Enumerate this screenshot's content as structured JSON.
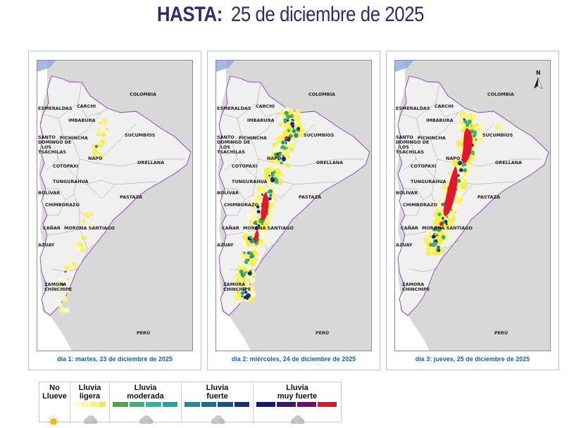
{
  "header": {
    "strong": "HASTA:",
    "date": "25 de diciembre de 2025"
  },
  "labels": {
    "colombia": "COLOMBIA",
    "peru": "PERÚ",
    "esmeraldas": "ESMERALDAS",
    "carchi": "CARCHI",
    "imbabura": "IMBABURA",
    "sucumbios": "SUCUMBÍOS",
    "santo1": "SANTO",
    "santo2": "DOMINGO DE",
    "santo3": "LOS",
    "santo4": "TSÁCHILAS",
    "pichincha": "PICHINCHA",
    "napo": "NAPO",
    "cotopaxi": "COTOPAXI",
    "orellana": "ORELLANA",
    "tungurahua": "TUNGURAHUA",
    "bolivar": "BOLÍVAR",
    "pastaza": "PASTAZA",
    "chimborazo": "CHIMBORAZO",
    "canar": "CAÑAR",
    "morona": "MORONA SANTIAGO",
    "azuay": "AZUAY",
    "zamora1": "ZAMORA",
    "zamora2": "CHINCHIPE",
    "north": "N"
  },
  "panels": [
    {
      "caption": "día 1: martes, 23 de diciembre de 2025",
      "intensity": 1
    },
    {
      "caption": "día 2: miércoles, 24 de diciembre de 2025",
      "intensity": 2
    },
    {
      "caption": "día 3: jueves, 25 de diciembre de 2025",
      "intensity": 3
    }
  ],
  "legend": {
    "columns": [
      {
        "line1": "No",
        "line2": "Llueve",
        "colors": []
      },
      {
        "line1": "Lluvia",
        "line2": "ligera",
        "colors": [
          "#fffbd0",
          "#fff59b",
          "#fff066",
          "#f0ee40"
        ]
      },
      {
        "line1": "Lluvia",
        "line2": "moderada",
        "colors": [
          "#4fa848",
          "#3cb371",
          "#2eb89a",
          "#1fa8a0"
        ]
      },
      {
        "line1": "Lluvia",
        "line2": "fuerte",
        "colors": [
          "#1f8aa0",
          "#1a6f9a",
          "#1b4f8c",
          "#14307a"
        ]
      },
      {
        "line1": "Lluvia",
        "line2": "muy fuerte",
        "colors": [
          "#14167a",
          "#3a1478",
          "#6a126e",
          "#e3162b"
        ]
      }
    ]
  },
  "colors": {
    "title": "#27306b",
    "caption": "#1c5fa8",
    "border": "#8e3fb8",
    "land": "#f0f0f0",
    "ocean": "#ffffff",
    "neighbor": "#d8d8d8"
  }
}
